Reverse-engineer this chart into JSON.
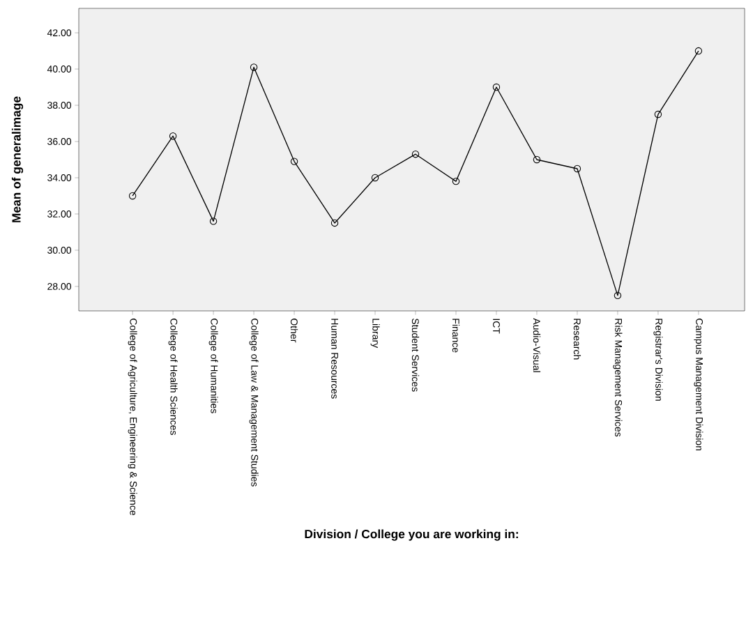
{
  "chart_data": {
    "type": "line",
    "xlabel": "Division / College you are working in:",
    "ylabel": "Mean of generalimage",
    "categories": [
      "College of Agriculture, Engineering & Science",
      "College of Health Sciences",
      "College of Humanities",
      "College of Law & Management Studies",
      "Other",
      "Human Resources",
      "Library",
      "Student Services",
      "Finance",
      "ICT",
      "Audio-Visual",
      "Research",
      "Risk Management Services",
      "Registrar's Division",
      "Campus Management Division"
    ],
    "values": [
      33.0,
      36.3,
      31.6,
      40.1,
      34.9,
      31.5,
      34.0,
      35.3,
      33.8,
      39.0,
      35.0,
      34.5,
      27.5,
      37.5,
      41.0
    ],
    "color": "#000000",
    "marker": "circle",
    "line_style": "solid",
    "ylim": [
      26.65,
      43.35
    ],
    "yticks": [
      {
        "value": 28,
        "label": "28.00"
      },
      {
        "value": 30,
        "label": "30.00"
      },
      {
        "value": 32,
        "label": "32.00"
      },
      {
        "value": 34,
        "label": "34.00"
      },
      {
        "value": 36,
        "label": "36.00"
      },
      {
        "value": 38,
        "label": "38.00"
      },
      {
        "value": 40,
        "label": "40.00"
      },
      {
        "value": 42,
        "label": "42.00"
      }
    ]
  }
}
